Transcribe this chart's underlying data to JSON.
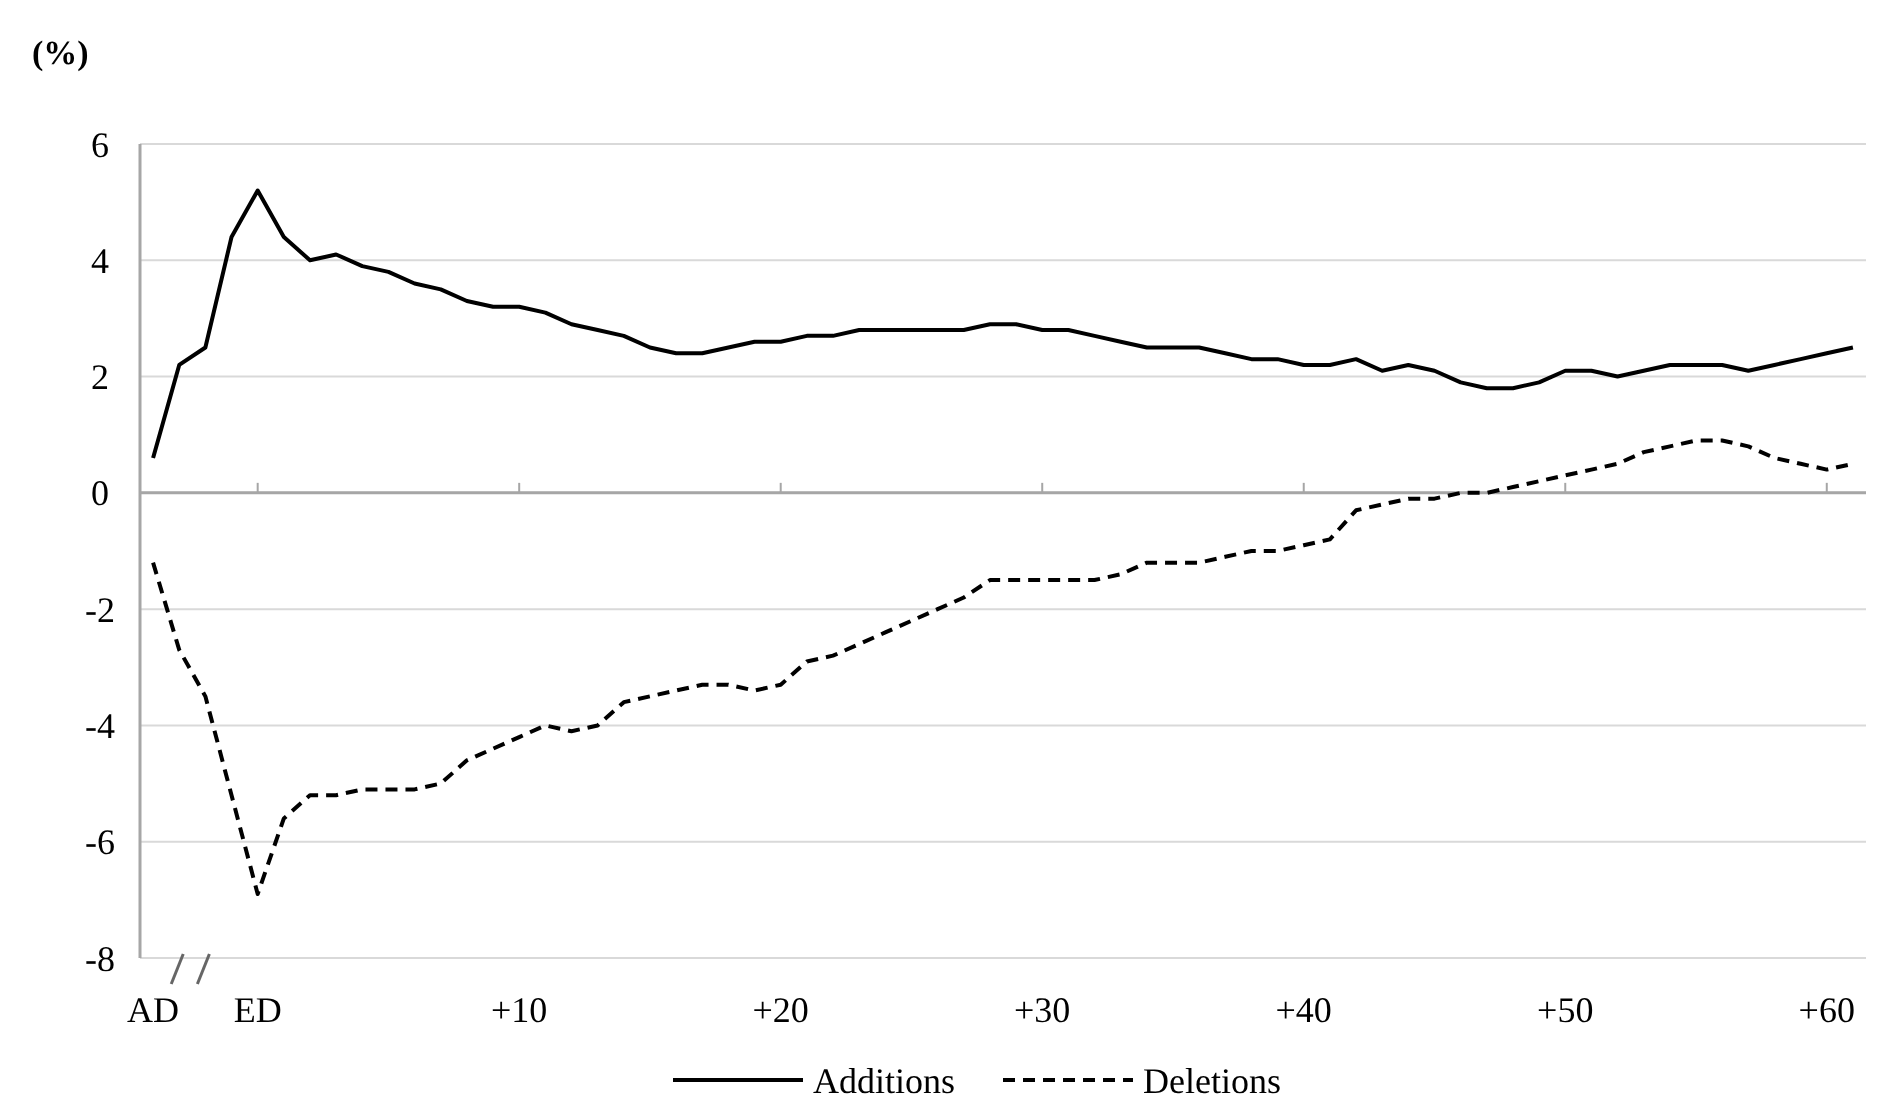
{
  "chart_data": {
    "type": "line",
    "ylabel": "(%)",
    "categories": [
      "AD",
      null,
      null,
      null,
      "ED",
      null,
      null,
      null,
      null,
      null,
      null,
      null,
      null,
      null,
      "+10",
      null,
      null,
      null,
      null,
      null,
      null,
      null,
      null,
      null,
      "+20",
      null,
      null,
      null,
      null,
      null,
      null,
      null,
      null,
      null,
      "+30",
      null,
      null,
      null,
      null,
      null,
      null,
      null,
      null,
      null,
      "+40",
      null,
      null,
      null,
      null,
      null,
      null,
      null,
      null,
      null,
      "+50",
      null,
      null,
      null,
      null,
      null,
      null,
      null,
      null,
      null,
      "+60",
      null
    ],
    "series": [
      {
        "name": "Additions",
        "color": "#000000",
        "line_style": "solid",
        "values": [
          0.6,
          2.2,
          2.5,
          4.4,
          5.2,
          4.4,
          4.0,
          4.1,
          3.9,
          3.8,
          3.6,
          3.5,
          3.3,
          3.2,
          3.2,
          3.1,
          2.9,
          2.8,
          2.7,
          2.5,
          2.4,
          2.4,
          2.5,
          2.6,
          2.6,
          2.7,
          2.7,
          2.8,
          2.8,
          2.8,
          2.8,
          2.8,
          2.9,
          2.9,
          2.8,
          2.8,
          2.7,
          2.6,
          2.5,
          2.5,
          2.5,
          2.4,
          2.3,
          2.3,
          2.2,
          2.2,
          2.3,
          2.1,
          2.2,
          2.1,
          1.9,
          1.8,
          1.8,
          1.9,
          2.1,
          2.1,
          2.0,
          2.1,
          2.2,
          2.2,
          2.2,
          2.1,
          2.2,
          2.3,
          2.4,
          2.5
        ]
      },
      {
        "name": "Deletions",
        "color": "#000000",
        "line_style": "dashed",
        "values": [
          -1.2,
          -2.7,
          -3.5,
          -5.2,
          -6.9,
          -5.6,
          -5.2,
          -5.2,
          -5.1,
          -5.1,
          -5.1,
          -5.0,
          -4.6,
          -4.4,
          -4.2,
          -4.0,
          -4.1,
          -4.0,
          -3.6,
          -3.5,
          -3.4,
          -3.3,
          -3.3,
          -3.4,
          -3.3,
          -2.9,
          -2.8,
          -2.6,
          -2.4,
          -2.2,
          -2.0,
          -1.8,
          -1.5,
          -1.5,
          -1.5,
          -1.5,
          -1.5,
          -1.4,
          -1.2,
          -1.2,
          -1.2,
          -1.1,
          -1.0,
          -1.0,
          -0.9,
          -0.8,
          -0.3,
          -0.2,
          -0.1,
          -0.1,
          0.0,
          0.0,
          0.1,
          0.2,
          0.3,
          0.4,
          0.5,
          0.7,
          0.8,
          0.9,
          0.9,
          0.8,
          0.6,
          0.5,
          0.4,
          0.5
        ]
      }
    ],
    "ylim": [
      -8,
      6
    ],
    "yticks": [
      -8,
      -6,
      -4,
      -2,
      0,
      2,
      4,
      6
    ],
    "grid": "y",
    "legend": "bottom"
  }
}
